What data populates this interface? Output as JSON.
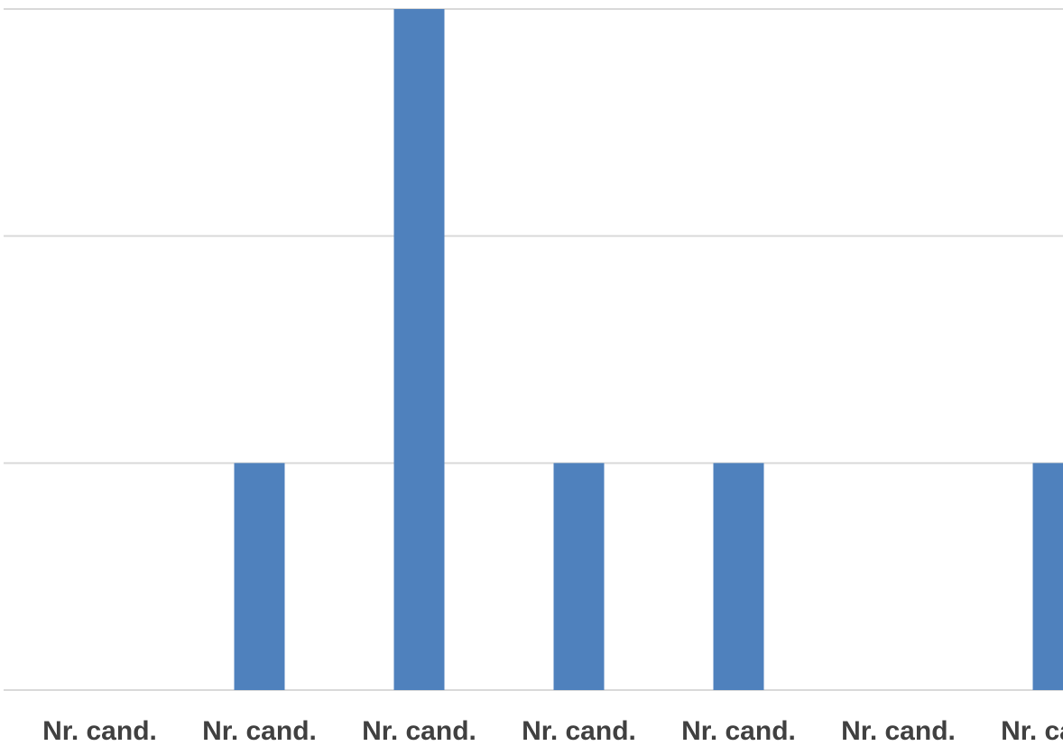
{
  "chart_data": {
    "type": "bar",
    "categories": [
      "Nr. cand.",
      "Nr. cand.",
      "Nr. cand.",
      "Nr. cand.",
      "Nr. cand.",
      "Nr. cand.",
      "Nr. cand."
    ],
    "values": [
      0,
      1,
      3,
      1,
      1,
      0,
      1
    ],
    "ylim": [
      0,
      3
    ],
    "grid": true,
    "bar_color": "#4f81bd",
    "gridline_color": "#d9d9d9",
    "label_color": "#404040"
  }
}
